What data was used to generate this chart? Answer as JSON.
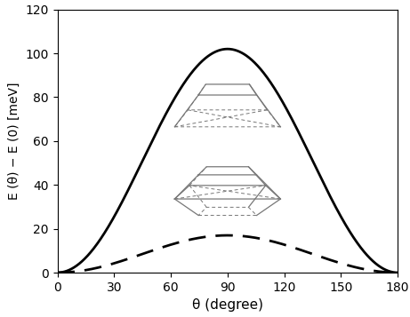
{
  "title": "",
  "xlabel": "θ (degree)",
  "ylabel": "E (θ) − E (0) [meV]",
  "xlim": [
    0,
    180
  ],
  "ylim": [
    0,
    120
  ],
  "xticks": [
    0,
    30,
    60,
    90,
    120,
    150,
    180
  ],
  "yticks": [
    0,
    20,
    40,
    60,
    80,
    100,
    120
  ],
  "solid_peak": 102.0,
  "dashed_peak": 17.0,
  "solid_color": "#000000",
  "dashed_color": "#000000",
  "background_color": "#ffffff",
  "linewidth_solid": 2.0,
  "linewidth_dashed": 2.0,
  "n_points": 1000,
  "shape_color": "#777777",
  "shape_lw": 0.9,
  "shape_lw_dash": 0.7
}
